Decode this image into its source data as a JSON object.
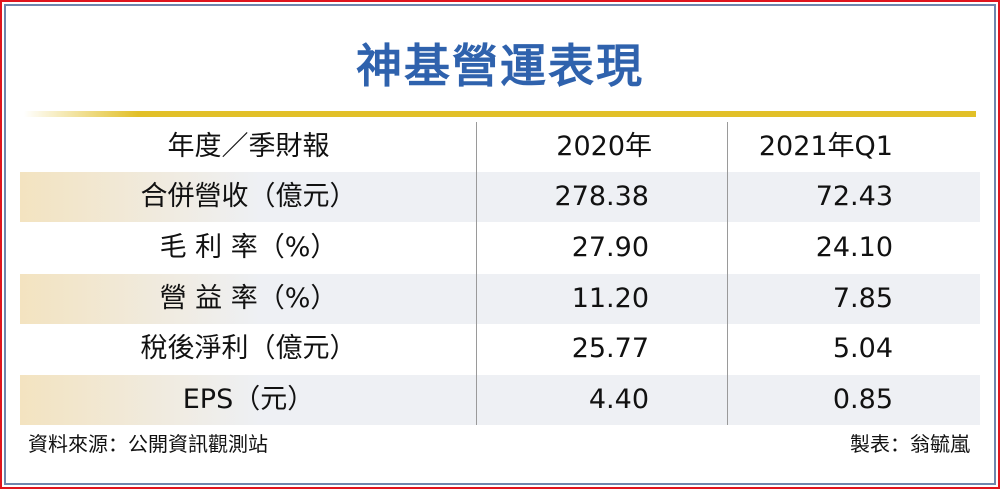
{
  "title": "神基營運表現",
  "chart_data": {
    "type": "table",
    "title": "神基營運表現",
    "columns": [
      "年度／季財報",
      "2020年",
      "2021年Q1"
    ],
    "rows": [
      {
        "label": "合併營收（億元）",
        "values": [
          "278.38",
          "72.43"
        ]
      },
      {
        "label": "毛 利 率（%）",
        "values": [
          "27.90",
          "24.10"
        ]
      },
      {
        "label": "營 益 率（%）",
        "values": [
          "11.20",
          "7.85"
        ]
      },
      {
        "label": "稅後淨利（億元）",
        "values": [
          "25.77",
          "5.04"
        ]
      },
      {
        "label": "EPS（元）",
        "values": [
          "4.40",
          "0.85"
        ]
      }
    ]
  },
  "footer": {
    "source": "資料來源：公開資訊觀測站",
    "author": "製表：翁毓嵐"
  },
  "colors": {
    "title": "#2f62ad",
    "border": "#e0141e",
    "accent_line": "#e2c028"
  }
}
